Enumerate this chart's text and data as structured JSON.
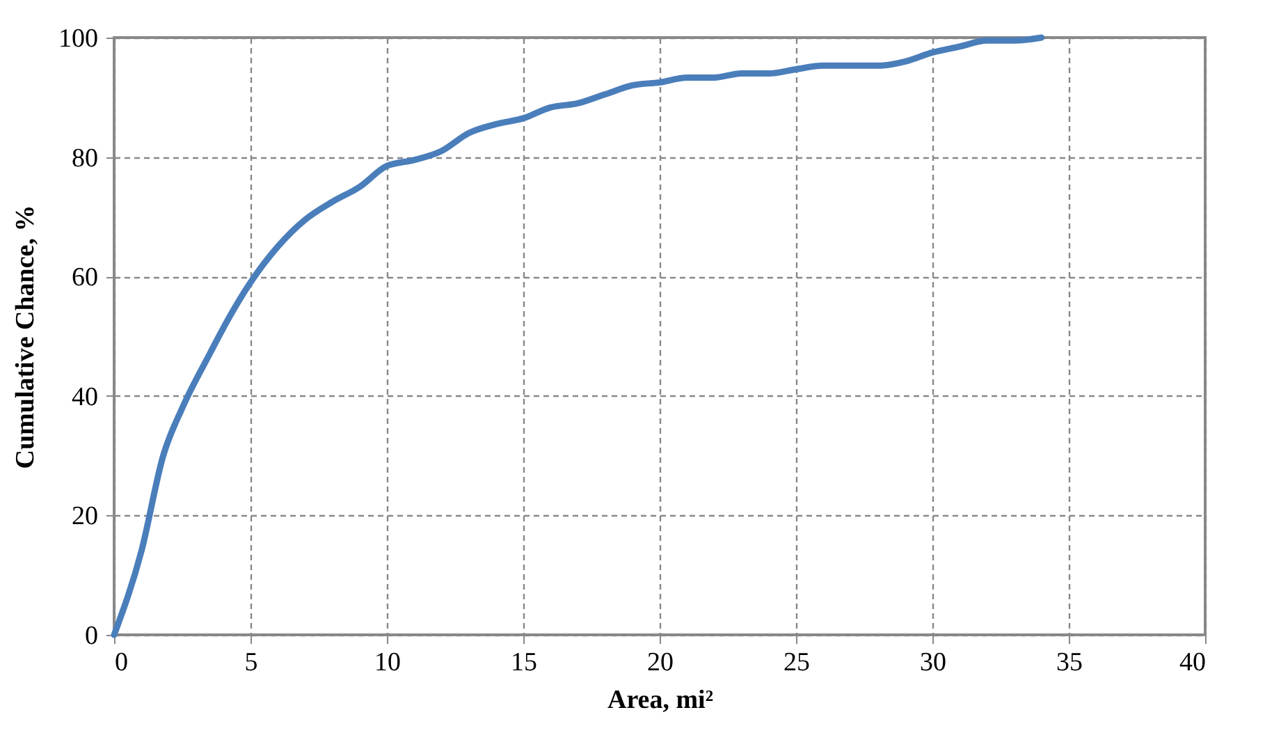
{
  "chart_data": {
    "type": "line",
    "xlabel": "Area, mi²",
    "ylabel": "Cumulative Chance, %",
    "xlim": [
      0,
      40
    ],
    "xticks": [
      0,
      5,
      10,
      15,
      20,
      25,
      30,
      35,
      40
    ],
    "ylim": [
      0,
      100
    ],
    "yticks": [
      0,
      20,
      40,
      60,
      80,
      100
    ],
    "grid": true,
    "marker": "none",
    "line_style": "solid",
    "series": [
      {
        "color": "#4a7ebb",
        "x": [
          0,
          1,
          1.8,
          2.5,
          3.5,
          4.2,
          5,
          6,
          7,
          8,
          9,
          10,
          11,
          12,
          13,
          14,
          15,
          16,
          17,
          18,
          19,
          20,
          21,
          22,
          23,
          24,
          25,
          26,
          27,
          28,
          29,
          30,
          31,
          32,
          33,
          34
        ],
        "values": [
          0,
          14,
          30,
          38,
          47,
          53,
          59,
          65,
          69.5,
          72.5,
          75,
          78.5,
          79.5,
          81,
          84,
          85.5,
          86.5,
          88.3,
          89,
          90.5,
          92,
          92.5,
          93.3,
          93.3,
          94,
          94,
          94.7,
          95.3,
          95.3,
          95.3,
          96,
          97.5,
          98.5,
          99.5,
          99.5,
          100
        ]
      }
    ]
  }
}
